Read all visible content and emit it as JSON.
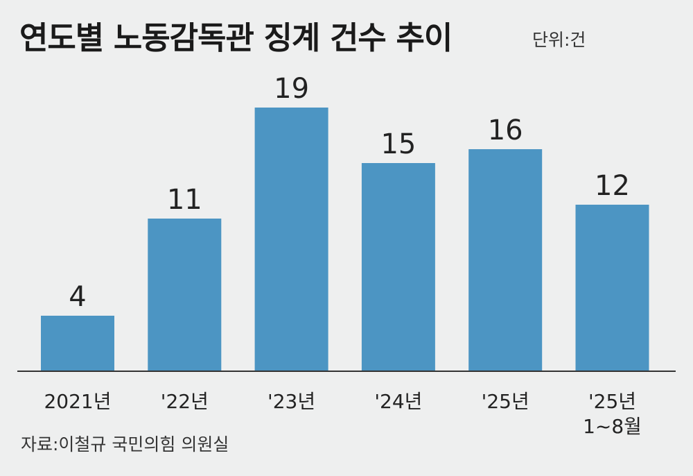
{
  "title": "연도별 노동감독관 징계 건수 추이",
  "unit": "단위:건",
  "source": "자료:이철규 국민의힘 의원실",
  "colors": {
    "background": "#eeefef",
    "bar": "#4c95c3",
    "axis": "#333333",
    "text": "#222222"
  },
  "chart_data": {
    "type": "bar",
    "title": "연도별 노동감독관 징계 건수 추이",
    "unit": "단위:건",
    "categories": [
      "2021년",
      "'22년",
      "'23년",
      "'24년",
      "'25년",
      "'25년\n1~8월"
    ],
    "values": [
      4,
      11,
      19,
      15,
      16,
      12
    ],
    "xlabel": "",
    "ylabel": "",
    "ylim": [
      0,
      21
    ],
    "grid": false,
    "legend": "none",
    "data_labels": [
      "4",
      "11",
      "19",
      "15",
      "16",
      "12"
    ]
  }
}
